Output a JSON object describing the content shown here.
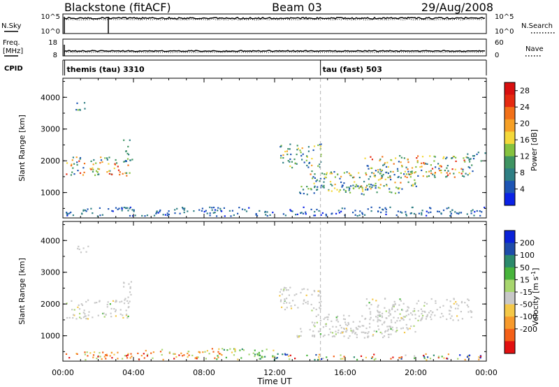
{
  "header": {
    "site": "Blackstone (fitACF)",
    "beam": "Beam 03",
    "date": "29/Aug/2008"
  },
  "status_panels": {
    "nsky": {
      "label": "N.Sky",
      "right_label": "N.Search",
      "left_ticks": [
        "10^5",
        "10^0"
      ],
      "right_ticks": [
        "10^5",
        "10^0"
      ]
    },
    "freq": {
      "label_line1": "Freq.",
      "label_line2": "[MHz]",
      "right_label": "Nave",
      "left_ticks": [
        "18",
        "8"
      ],
      "right_ticks": [
        "60",
        "0"
      ]
    },
    "cpid": {
      "label": "CPID",
      "programs": [
        {
          "name": "themis (tau) 3310",
          "start_hour": 0.1
        },
        {
          "name": "tau (fast) 503",
          "start_hour": 14.6
        }
      ]
    }
  },
  "colors": {
    "power": [
      "#0a22e6",
      "#1d55b4",
      "#2f7f84",
      "#3f9462",
      "#86c23f",
      "#f4d83a",
      "#f6a026",
      "#f27018",
      "#e52a10",
      "#d80f0f"
    ],
    "velocity": [
      "#e21010",
      "#f46018",
      "#f79a2c",
      "#f4c848",
      "#c8c8c8",
      "#a8d66e",
      "#48b43c",
      "#2c8a6c",
      "#1e4caa",
      "#0a22d8"
    ]
  },
  "chart_data": [
    {
      "type": "heatmap",
      "name": "power",
      "xlabel": "",
      "ylabel": "Slant Range [km]",
      "xlim": [
        0,
        24
      ],
      "ylim": [
        200,
        4600
      ],
      "x_ticks": [
        "00:00",
        "04:00",
        "08:00",
        "12:00",
        "16:00",
        "20:00",
        "00:00"
      ],
      "y_ticks": [
        1000,
        2000,
        3000,
        4000
      ],
      "colorbar": {
        "label": "Power [dB]",
        "ticks": [
          4,
          8,
          12,
          16,
          20,
          24,
          28
        ],
        "range": [
          0,
          30
        ]
      },
      "dashed_marker_hour": 14.6,
      "regions": [
        {
          "t0": 0.15,
          "t1": 3.8,
          "r0": 1550,
          "r1": 2150,
          "v0": 3,
          "v1": 27
        },
        {
          "t0": 3.4,
          "t1": 3.9,
          "r0": 2000,
          "r1": 2750,
          "v0": 3,
          "v1": 12
        },
        {
          "t0": 0.7,
          "t1": 1.5,
          "r0": 3600,
          "r1": 3850,
          "v0": 3,
          "v1": 14
        },
        {
          "t0": 1.6,
          "t1": 1.7,
          "r0": 850,
          "r1": 1000,
          "v0": 3,
          "v1": 6
        },
        {
          "t0": 12.2,
          "t1": 14.6,
          "r0": 1800,
          "r1": 2550,
          "v0": 3,
          "v1": 20
        },
        {
          "t0": 14.0,
          "t1": 20.0,
          "r0": 1100,
          "r1": 1700,
          "v0": 3,
          "v1": 22
        },
        {
          "t0": 13.2,
          "t1": 19.0,
          "r0": 950,
          "r1": 1250,
          "v0": 3,
          "v1": 18
        },
        {
          "t0": 17.0,
          "t1": 23.2,
          "r0": 1500,
          "r1": 2200,
          "v0": 3,
          "v1": 26
        },
        {
          "t0": 22.8,
          "t1": 23.9,
          "r0": 1950,
          "r1": 2300,
          "v0": 3,
          "v1": 10
        },
        {
          "t0": 0.1,
          "t1": 23.9,
          "r0": 280,
          "r1": 560,
          "v0": 2,
          "v1": 9
        }
      ]
    },
    {
      "type": "heatmap",
      "name": "velocity",
      "xlabel": "Time UT",
      "ylabel": "Slant Range [km]",
      "xlim": [
        0,
        24
      ],
      "ylim": [
        200,
        4600
      ],
      "x_ticks": [
        "00:00",
        "04:00",
        "08:00",
        "12:00",
        "16:00",
        "20:00",
        "00:00"
      ],
      "y_ticks": [
        1000,
        2000,
        3000,
        4000
      ],
      "colorbar": {
        "label": "Velocity [m s-1]",
        "ticks": [
          -200,
          -100,
          -50,
          -15,
          15,
          50,
          100,
          200
        ]
      },
      "dashed_marker_hour": 14.6,
      "regions": [
        {
          "t0": 0.15,
          "t1": 3.8,
          "r0": 1550,
          "r1": 2150,
          "mostly": "gray"
        },
        {
          "t0": 3.4,
          "t1": 3.9,
          "r0": 2000,
          "r1": 2750,
          "mostly": "gray"
        },
        {
          "t0": 0.7,
          "t1": 1.5,
          "r0": 3600,
          "r1": 3850,
          "mostly": "gray"
        },
        {
          "t0": 12.2,
          "t1": 14.6,
          "r0": 1800,
          "r1": 2550,
          "mostly": "gray"
        },
        {
          "t0": 14.0,
          "t1": 20.0,
          "r0": 1100,
          "r1": 1700,
          "mostly": "gray"
        },
        {
          "t0": 13.2,
          "t1": 19.0,
          "r0": 950,
          "r1": 1250,
          "mostly": "gray"
        },
        {
          "t0": 17.0,
          "t1": 23.2,
          "r0": 1500,
          "r1": 2200,
          "mostly": "gray"
        },
        {
          "t0": 0.1,
          "t1": 5.5,
          "r0": 260,
          "r1": 560,
          "mostly": "negative"
        },
        {
          "t0": 5.5,
          "t1": 9.0,
          "r0": 260,
          "r1": 620,
          "mostly": "negative"
        },
        {
          "t0": 8.5,
          "t1": 12.0,
          "r0": 260,
          "r1": 620,
          "mostly": "positive"
        },
        {
          "t0": 12.0,
          "t1": 23.9,
          "r0": 260,
          "r1": 450,
          "mostly": "mixed"
        }
      ]
    }
  ]
}
